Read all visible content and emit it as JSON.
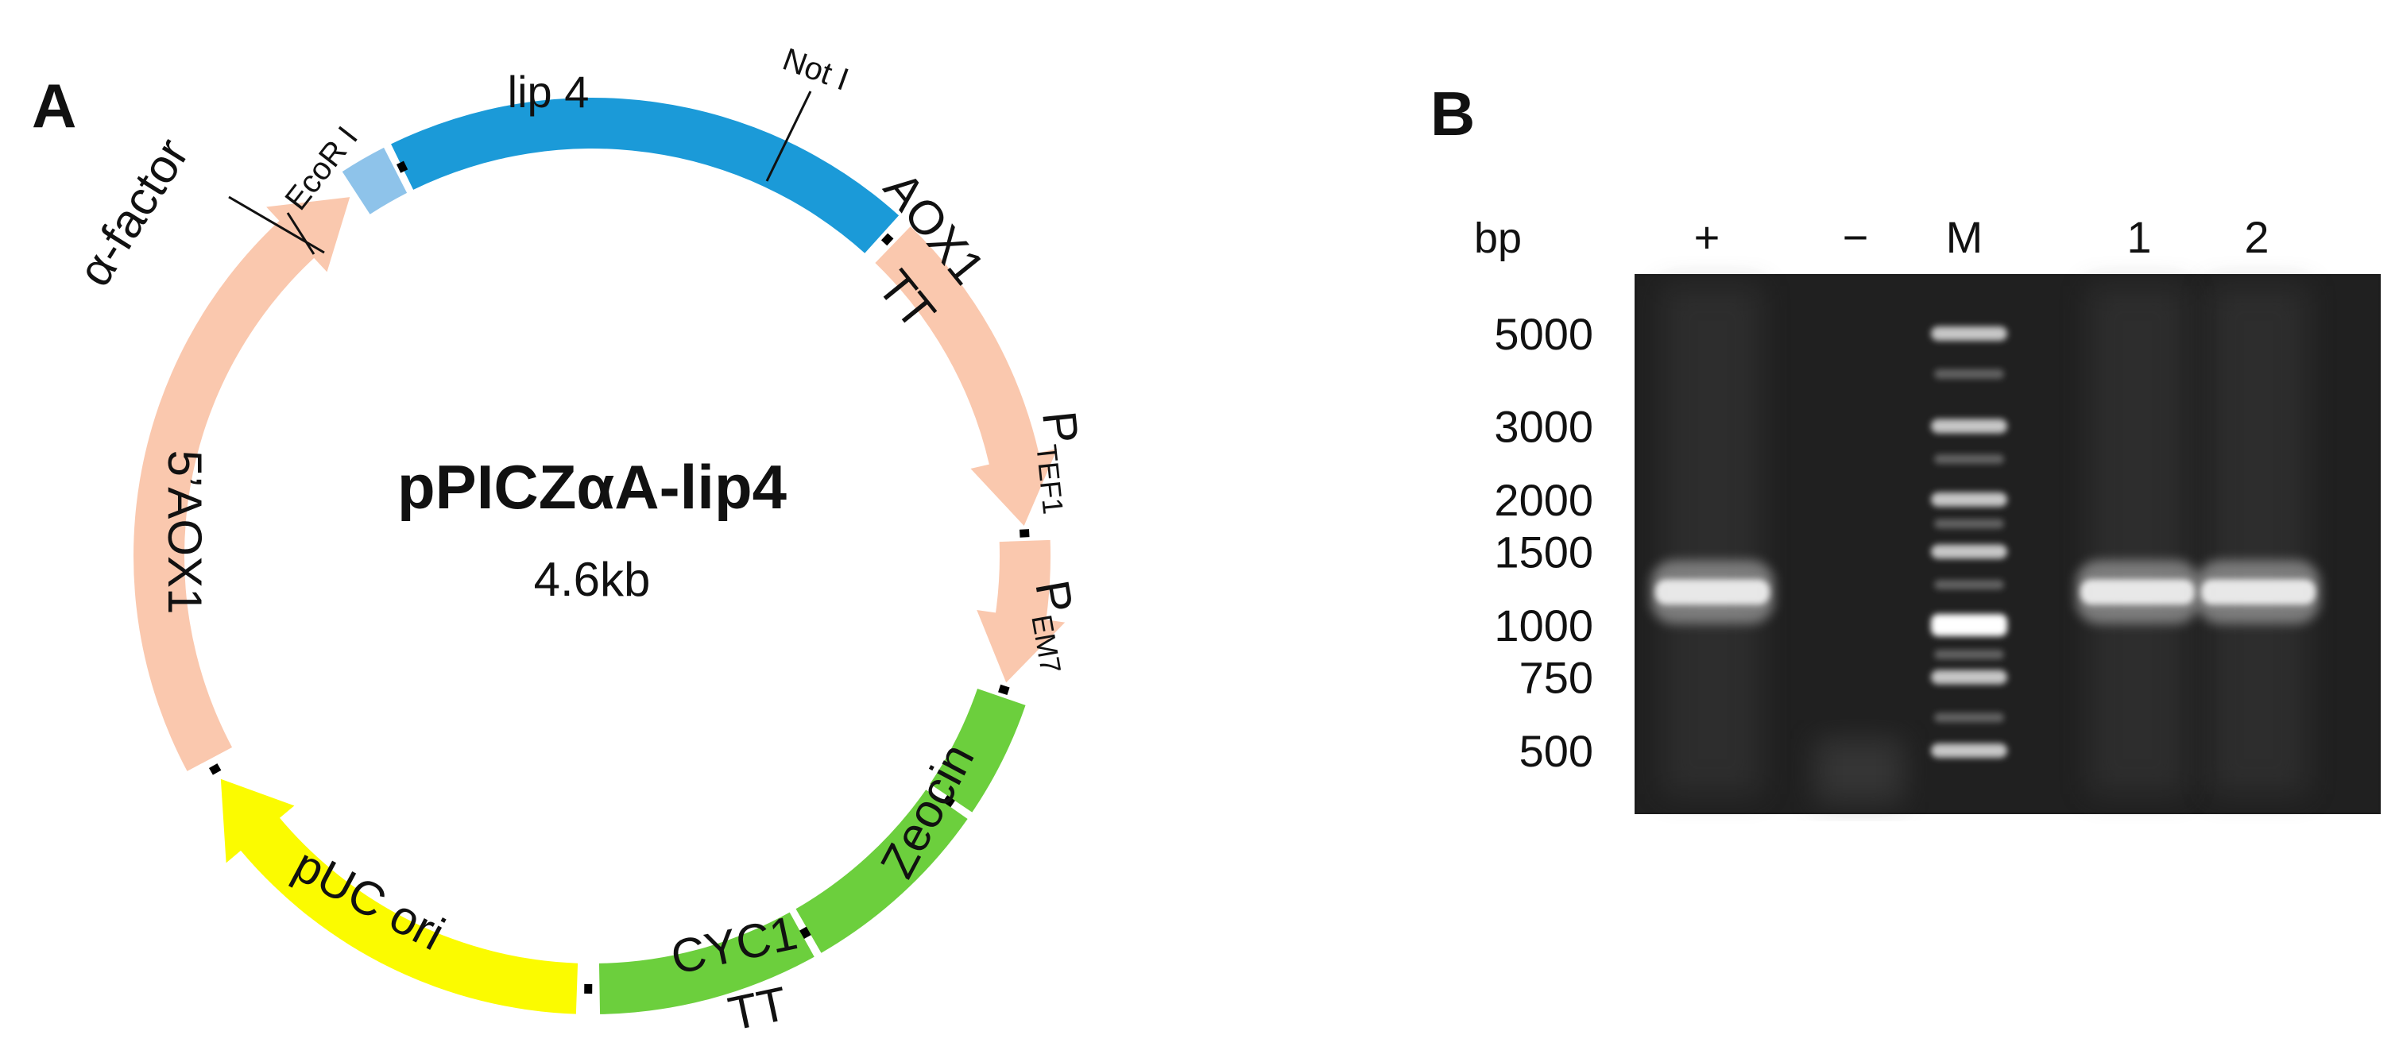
{
  "panel_a": {
    "letter": "A",
    "plasmid_name": "pPICZαA-lip4",
    "plasmid_size": "4.6kb",
    "segments": [
      {
        "id": "lip4",
        "label": "lip 4",
        "color": "#1b9ad8",
        "start_deg": 334,
        "end_deg": 42,
        "arrow": false
      },
      {
        "id": "aox1tt",
        "label": "AOX1 TT",
        "color": "#fac8ae",
        "start_deg": 44,
        "end_deg": 86,
        "arrow": true
      },
      {
        "id": "ptef1",
        "label": "PTEF1",
        "color": "#fac8ae",
        "start_deg": 88,
        "end_deg": 107,
        "arrow": true
      },
      {
        "id": "pem7",
        "label": "PEM7",
        "color": "#6ccf3d",
        "start_deg": 109,
        "end_deg": 124,
        "arrow": false
      },
      {
        "id": "zeocin",
        "label": "Zeocin",
        "color": "#6ccf3d",
        "start_deg": 125,
        "end_deg": 150,
        "arrow": false
      },
      {
        "id": "cyc1tt",
        "label": "CYC1 TT",
        "color": "#6ccf3d",
        "start_deg": 151,
        "end_deg": 179,
        "arrow": false
      },
      {
        "id": "puc",
        "label": "pUC ori",
        "color": "#fbfb00",
        "start_deg": 182,
        "end_deg": 239,
        "arrow": true
      },
      {
        "id": "aox5",
        "label": "5'AOX1",
        "color": "#fac8ae",
        "start_deg": 242,
        "end_deg": 326,
        "arrow": true
      },
      {
        "id": "alpha",
        "label": "α-factor",
        "color": "#8ec3ea",
        "start_deg": 327,
        "end_deg": 333,
        "arrow": false
      }
    ],
    "sites": [
      {
        "id": "ecori",
        "label": "EcoR I"
      },
      {
        "id": "noti",
        "label": "Not I"
      }
    ],
    "feature_labels": {
      "lip4": "lip 4",
      "aox1": "AOX1",
      "tt_top": "TT",
      "ptef_p": "P",
      "ptef_sub": "TEF1",
      "pem_p": "P",
      "pem_sub": "EM7",
      "zeocin": "Zeocin",
      "cyc1": "CYC1",
      "tt_bottom": "TT",
      "puc": "pUC ori",
      "aox5": "5’AOX1",
      "alpha": "α-factor"
    }
  },
  "panel_b": {
    "letter": "B",
    "unit_label": "bp",
    "lanes": [
      "+",
      "−",
      "M",
      "1",
      "2"
    ],
    "marker_sizes": [
      "5000",
      "3000",
      "2000",
      "1500",
      "1000",
      "750",
      "500"
    ],
    "bands": [
      {
        "lane": "+",
        "size_bp": 1200
      },
      {
        "lane": "1",
        "size_bp": 1200
      },
      {
        "lane": "2",
        "size_bp": 1200
      }
    ]
  }
}
